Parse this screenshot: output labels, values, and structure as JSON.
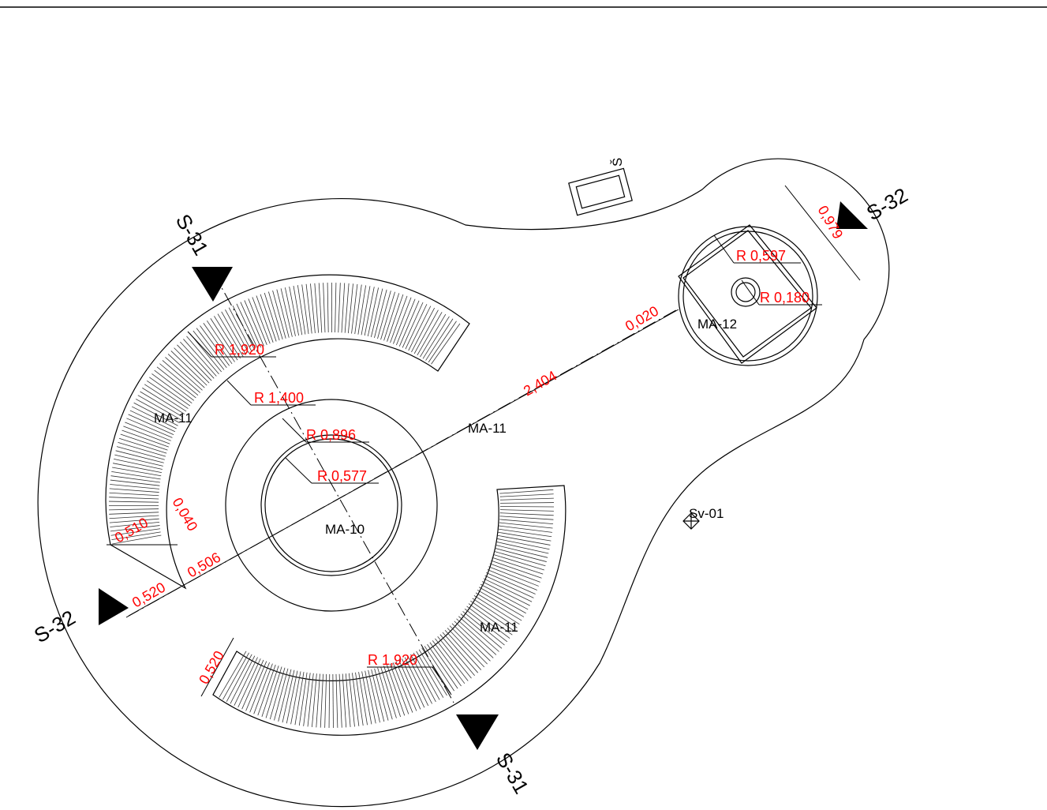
{
  "sections": [
    "S-31",
    "S-31",
    "S-32",
    "S-32"
  ],
  "labels": {
    "north": "Š",
    "fixture": "Sv-01",
    "center_bed": "MA-10",
    "benches": [
      "MA-11",
      "MA-11",
      "MA-11"
    ],
    "fountain": "MA-12"
  },
  "dimensions": [
    "R 1,920",
    "R 1,400",
    "R 0,896",
    "R 0,577",
    "R 1,920",
    "2,404",
    "0,020",
    "R 0,597",
    "R 0,180",
    "0,979",
    "0,510",
    "0,040",
    "0,520",
    "0,506",
    "0,520"
  ]
}
